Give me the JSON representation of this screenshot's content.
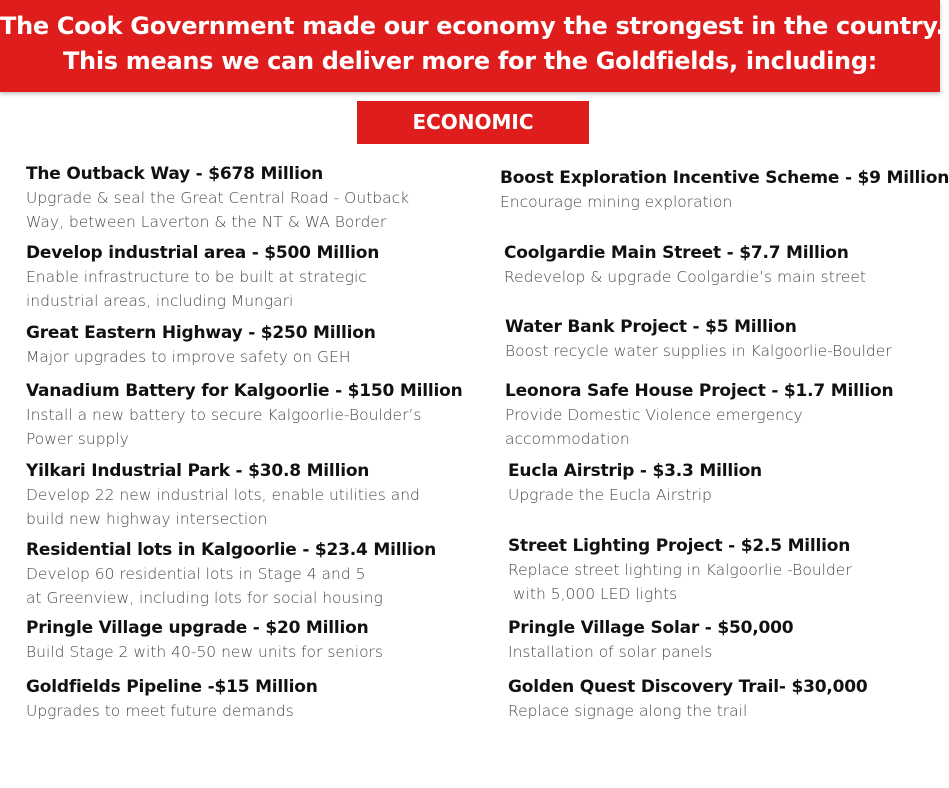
{
  "header": {
    "line1": "The Cook Government made our economy the strongest in the country.",
    "line2": "This means we can deliver more for the Goldfields, including:"
  },
  "section": {
    "label": "ECONOMIC"
  },
  "left": [
    {
      "title": "The Outback Way - $678 Million",
      "desc": [
        "Upgrade & seal the Great Central Road - Outback",
        "Way, between Laverton & the NT & WA Border"
      ]
    },
    {
      "title": "Develop industrial area - $500 Million",
      "desc": [
        "Enable infrastructure to be built at strategic",
        "industrial areas, including Mungari"
      ]
    },
    {
      "title": "Great Eastern Highway - $250 Million",
      "desc": [
        "Major upgrades to improve safety on GEH"
      ]
    },
    {
      "title": "Vanadium Battery for Kalgoorlie - $150 Million",
      "desc": [
        "Install a new battery to secure Kalgoorlie-Boulder’s",
        "Power supply"
      ]
    },
    {
      "title": "Yilkari Industrial Park - $30.8 Million",
      "desc": [
        "Develop 22 new industrial lots, enable utilities and",
        "build new highway intersection"
      ]
    },
    {
      "title": "Residential lots in Kalgoorlie - $23.4 Million",
      "desc": [
        "Develop 60 residential lots in Stage 4 and 5",
        "at Greenview, including lots for social housing"
      ]
    },
    {
      "title": "Pringle Village upgrade - $20 Million",
      "desc": [
        "Build Stage 2 with 40-50 new units for seniors"
      ]
    },
    {
      "title": "Goldfields Pipeline -$15 Million",
      "desc": [
        "Upgrades to meet future demands"
      ]
    }
  ],
  "right": [
    {
      "title": "Boost Exploration Incentive Scheme - $9 Million",
      "desc": [
        "Encourage mining exploration"
      ]
    },
    {
      "title": "Coolgardie Main Street - $7.7 Million",
      "desc": [
        "Redevelop & upgrade Coolgardie’s main street"
      ]
    },
    {
      "title": "Water Bank Project - $5 Million",
      "desc": [
        "Boost recycle water supplies in Kalgoorlie-Boulder"
      ]
    },
    {
      "title": "Leonora Safe House Project - $1.7 Million",
      "desc": [
        "Provide Domestic Violence emergency",
        "accommodation"
      ]
    },
    {
      "title": "Eucla Airstrip - $3.3 Million",
      "desc": [
        "Upgrade the Eucla Airstrip"
      ]
    },
    {
      "title": "Street Lighting Project - $2.5 Million",
      "desc": [
        "Replace street lighting in Kalgoorlie -Boulder",
        " with 5,000 LED lights"
      ]
    },
    {
      "title": "Pringle Village Solar - $50,000",
      "desc": [
        "Installation of solar panels"
      ]
    },
    {
      "title": "Golden Quest Discovery Trail- $30,000",
      "desc": [
        "Replace signage along the trail"
      ]
    }
  ]
}
